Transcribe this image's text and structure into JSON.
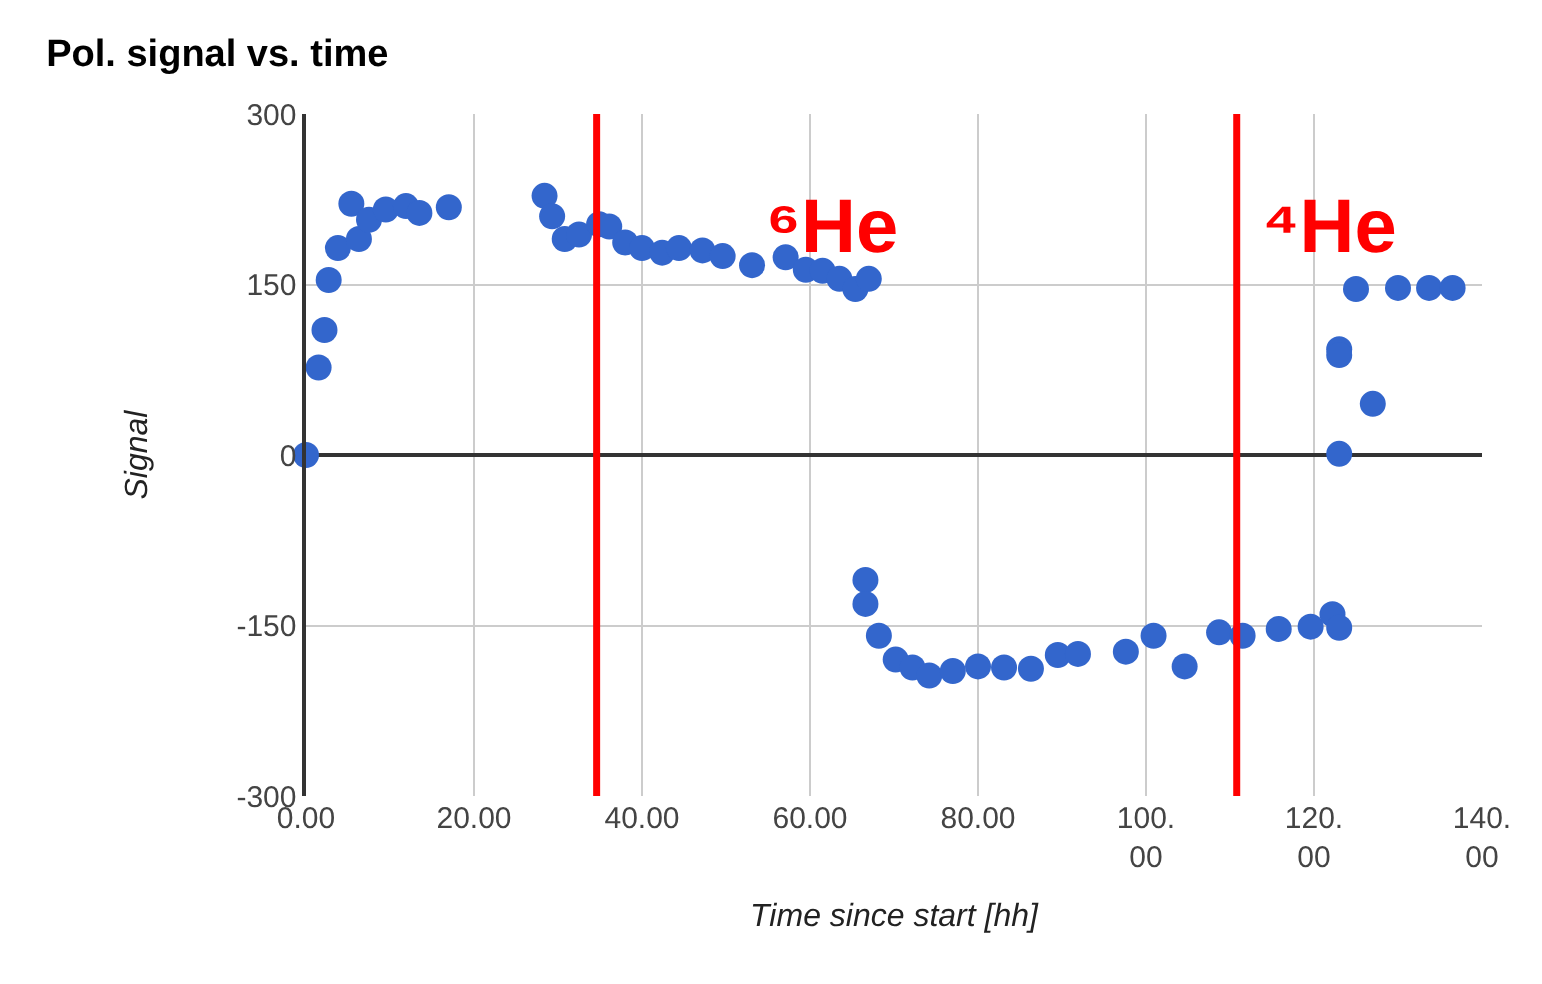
{
  "chart_data": {
    "type": "scatter",
    "title": "Pol. signal vs. time",
    "xlabel": "Time since start [hh]",
    "ylabel": "Signal",
    "x": [
      0,
      1.5,
      2.2,
      2.7,
      3.8,
      5.4,
      6.3,
      7.5,
      9.5,
      11.9,
      13.5,
      17,
      28.4,
      29.3,
      30.8,
      32.5,
      34.9,
      36.1,
      38,
      40,
      42.4,
      44.4,
      47.2,
      49.6,
      53.1,
      57.1,
      59.5,
      61.5,
      63.5,
      65.4,
      67,
      66.6,
      66.6,
      68.2,
      70.2,
      72.2,
      74.2,
      77,
      80,
      83.1,
      86.3,
      89.5,
      91.9,
      97.6,
      100.9,
      104.6,
      108.7,
      111.5,
      115.8,
      119.6,
      122.2,
      123,
      123,
      123,
      123,
      127,
      125,
      130,
      133.7,
      136.5
    ],
    "series": [
      {
        "color": "#3366cc",
        "values": [
          0,
          77,
          110,
          154,
          182,
          221,
          190,
          207,
          216,
          219,
          213,
          218,
          228,
          210,
          190,
          194,
          203,
          201,
          187,
          182,
          178,
          182,
          180,
          175,
          167,
          174,
          163,
          162,
          155,
          146,
          155,
          -110,
          -131,
          -159,
          -180,
          -187,
          -194,
          -190,
          -186,
          -187,
          -188,
          -176,
          -175,
          -173,
          -159,
          -186,
          -156,
          -159,
          -153,
          -151,
          -140,
          -152,
          1,
          93,
          88,
          45,
          146,
          147,
          147,
          147
        ]
      }
    ],
    "xlim": [
      0,
      140
    ],
    "xticks": [
      {
        "value": 0,
        "label": "0.00"
      },
      {
        "value": 20,
        "label": "20.00"
      },
      {
        "value": 40,
        "label": "40.00"
      },
      {
        "value": 60,
        "label": "60.00"
      },
      {
        "value": 80,
        "label": "80.00"
      },
      {
        "value": 100,
        "label": "100.\n00"
      },
      {
        "value": 120,
        "label": "120.\n00"
      },
      {
        "value": 140,
        "label": "140.\n00"
      }
    ],
    "ylim": [
      -300,
      300
    ],
    "yticks": [
      -300,
      -150,
      0,
      150,
      300
    ],
    "ref_lines": [
      {
        "axis": "x",
        "value": 34.6,
        "color": "#ff0000"
      },
      {
        "axis": "x",
        "value": 110.8,
        "color": "#ff0000"
      }
    ],
    "annotations": [
      "⁶He",
      "⁴He"
    ],
    "grid": true,
    "marker": "circle"
  }
}
